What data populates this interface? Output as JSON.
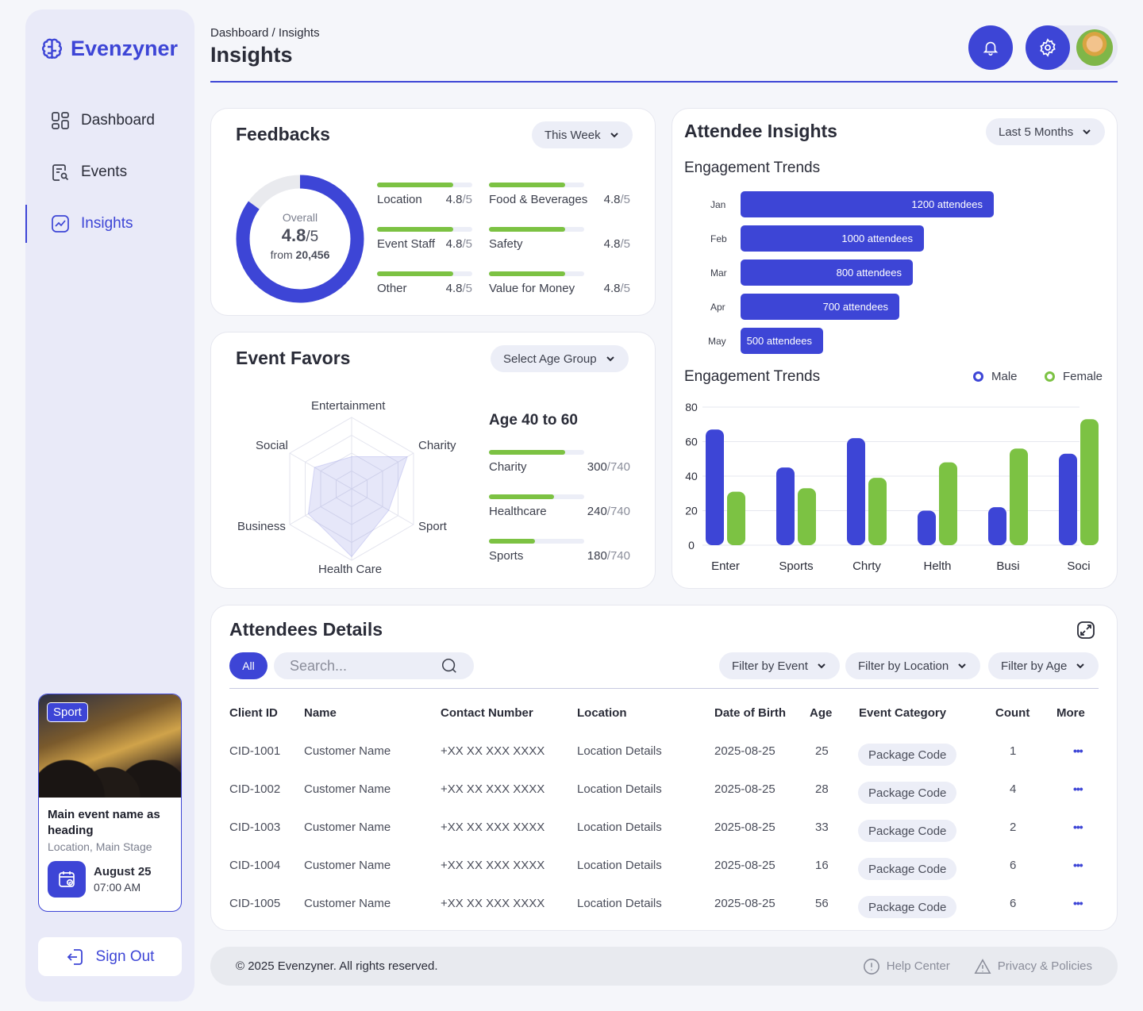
{
  "brand": {
    "name": "Evenzyner"
  },
  "sidebar": {
    "items": [
      {
        "label": "Dashboard",
        "icon": "grid-icon"
      },
      {
        "label": "Events",
        "icon": "event-list-icon"
      },
      {
        "label": "Insights",
        "icon": "chart-icon",
        "active": true
      }
    ],
    "event_card": {
      "tag": "Sport",
      "title": "Main event name as heading",
      "location": "Location, Main Stage",
      "date": "August 25",
      "time": "07:00 AM"
    },
    "sign_out": "Sign Out"
  },
  "header": {
    "breadcrumb": "Dashboard / Insights",
    "title": "Insights"
  },
  "feedbacks": {
    "title": "Feedbacks",
    "period": "This Week",
    "overall_label": "Overall",
    "overall_score": "4.8",
    "overall_max": "/5",
    "from_label": "from",
    "from_count": "20,456",
    "overall_fraction": 0.85,
    "items": [
      {
        "label": "Location",
        "score": "4.8",
        "max": "/5",
        "fill": 0.8
      },
      {
        "label": "Food & Beverages",
        "score": "4.8",
        "max": "/5",
        "fill": 0.8
      },
      {
        "label": "Event Staff",
        "score": "4.8",
        "max": "/5",
        "fill": 0.8
      },
      {
        "label": "Safety",
        "score": "4.8",
        "max": "/5",
        "fill": 0.8
      },
      {
        "label": "Other",
        "score": "4.8",
        "max": "/5",
        "fill": 0.8
      },
      {
        "label": "Value for Money",
        "score": "4.8",
        "max": "/5",
        "fill": 0.8
      }
    ]
  },
  "event_favors": {
    "title": "Event Favors",
    "age_select": "Select Age Group",
    "radar_axes": [
      "Entertainment",
      "Charity",
      "Sport",
      "Health Care",
      "Business",
      "Social"
    ],
    "radar_values": [
      0.45,
      0.9,
      0.6,
      0.95,
      0.7,
      0.6
    ],
    "age_group_title": "Age 40 to 60",
    "age_items": [
      {
        "label": "Charity",
        "value": "300",
        "total": "/740",
        "fill": 0.8
      },
      {
        "label": "Healthcare",
        "value": "240",
        "total": "/740",
        "fill": 0.68
      },
      {
        "label": "Sports",
        "value": "180",
        "total": "/740",
        "fill": 0.48
      }
    ]
  },
  "attendee_insights": {
    "title": "Attendee Insights",
    "period": "Last 5 Months",
    "legend_male": "Male",
    "legend_female": "Female",
    "colors": {
      "male": "#3d45d6",
      "female": "#7cc243"
    }
  },
  "chart_data": [
    {
      "type": "bar",
      "orientation": "horizontal",
      "title": "Engagement Trends",
      "categories": [
        "Jan",
        "Feb",
        "Mar",
        "Apr",
        "May"
      ],
      "values": [
        1200,
        1000,
        800,
        700,
        500
      ],
      "value_labels": [
        "1200 attendees",
        "1000 attendees",
        "800 attendees",
        "700 attendees",
        "500 attendees"
      ]
    },
    {
      "type": "bar",
      "title": "Engagement Trends",
      "categories": [
        "Enter",
        "Sports",
        "Chrty",
        "Helth",
        "Busi",
        "Soci"
      ],
      "series": [
        {
          "name": "Male",
          "values": [
            67,
            45,
            62,
            20,
            22,
            53
          ]
        },
        {
          "name": "Female",
          "values": [
            31,
            33,
            39,
            48,
            56,
            73
          ]
        }
      ],
      "ylim": [
        0,
        80
      ],
      "yticks": [
        "0",
        "20",
        "40",
        "60",
        "80"
      ],
      "grid": true,
      "legend": "top-right"
    }
  ],
  "attendees": {
    "title": "Attendees Details",
    "all_label": "All",
    "search_placeholder": "Search...",
    "filters": [
      "Filter by Event",
      "Filter by Location",
      "Filter by Age"
    ],
    "columns": [
      "Client ID",
      "Name",
      "Contact Number",
      "Location",
      "Date of Birth",
      "Age",
      "Event Category",
      "Count",
      "More"
    ],
    "rows": [
      {
        "id": "CID-1001",
        "name": "Customer Name",
        "contact": "+XX XX XXX XXXX",
        "location": "Location Details",
        "dob": "2025-08-25",
        "age": "25",
        "category": "Package Code",
        "count": "1"
      },
      {
        "id": "CID-1002",
        "name": "Customer Name",
        "contact": "+XX XX XXX XXXX",
        "location": "Location Details",
        "dob": "2025-08-25",
        "age": "28",
        "category": "Package Code",
        "count": "4"
      },
      {
        "id": "CID-1003",
        "name": "Customer Name",
        "contact": "+XX XX XXX XXXX",
        "location": "Location Details",
        "dob": "2025-08-25",
        "age": "33",
        "category": "Package Code",
        "count": "2"
      },
      {
        "id": "CID-1004",
        "name": "Customer Name",
        "contact": "+XX XX XXX XXXX",
        "location": "Location Details",
        "dob": "2025-08-25",
        "age": "16",
        "category": "Package Code",
        "count": "6"
      },
      {
        "id": "CID-1005",
        "name": "Customer Name",
        "contact": "+XX XX XXX XXXX",
        "location": "Location Details",
        "dob": "2025-08-25",
        "age": "56",
        "category": "Package Code",
        "count": "6"
      }
    ]
  },
  "footer": {
    "copyright": "© 2025 Evenzyner. All rights reserved.",
    "help": "Help Center",
    "privacy": "Privacy & Policies"
  }
}
